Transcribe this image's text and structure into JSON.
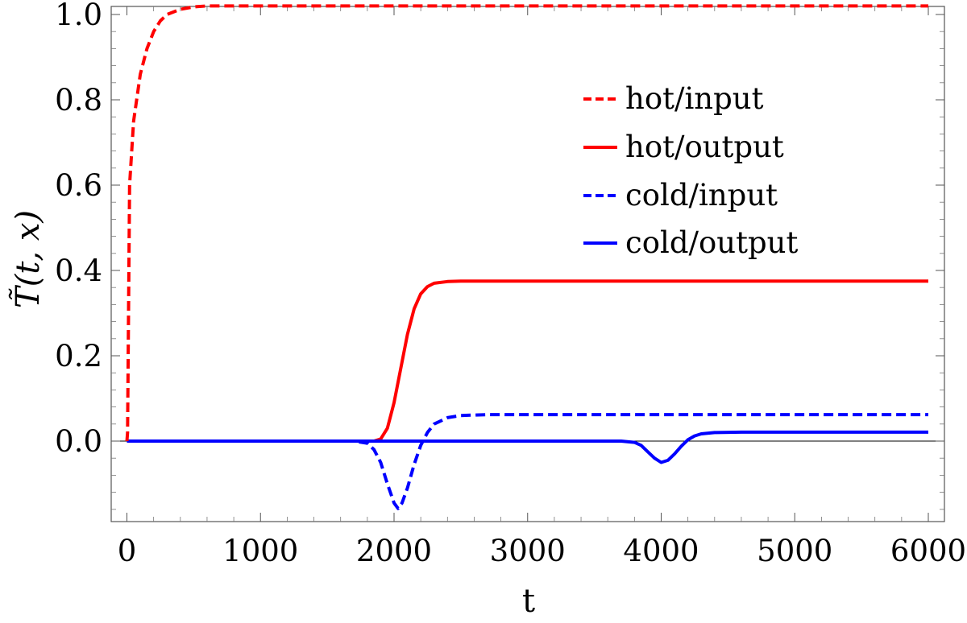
{
  "chart_data": {
    "type": "line",
    "title": "",
    "xlabel": "t",
    "ylabel": "T̃(t, x)",
    "xlim": [
      0,
      6000
    ],
    "ylim": [
      -0.16,
      1.02
    ],
    "x_ticks": [
      0,
      1000,
      2000,
      3000,
      4000,
      5000,
      6000
    ],
    "x_tick_labels": [
      "0",
      "1000",
      "2000",
      "3000",
      "4000",
      "5000",
      "6000"
    ],
    "y_ticks": [
      0.0,
      0.2,
      0.4,
      0.6,
      0.8,
      1.0
    ],
    "y_tick_labels": [
      "0.0",
      "0.2",
      "0.4",
      "0.6",
      "0.8",
      "1.0"
    ],
    "grid": false,
    "legend_position": "upper-right",
    "series": [
      {
        "name": "hot/input",
        "color": "#ff0000",
        "style": "dashed",
        "x": [
          0,
          5,
          20,
          50,
          100,
          150,
          200,
          250,
          300,
          400,
          500,
          600,
          800,
          1000,
          2000,
          3000,
          4000,
          5000,
          6000
        ],
        "y": [
          0.0,
          0.02,
          0.6,
          0.75,
          0.86,
          0.92,
          0.96,
          0.985,
          1.0,
          1.012,
          1.018,
          1.02,
          1.02,
          1.02,
          1.02,
          1.02,
          1.02,
          1.02,
          1.02
        ]
      },
      {
        "name": "hot/output",
        "color": "#ff0000",
        "style": "solid",
        "x": [
          0,
          1000,
          1850,
          1900,
          1950,
          2000,
          2050,
          2100,
          2150,
          2200,
          2250,
          2300,
          2400,
          2500,
          2600,
          3000,
          4000,
          5000,
          6000
        ],
        "y": [
          0.0,
          0.0,
          0.0,
          0.005,
          0.03,
          0.09,
          0.17,
          0.25,
          0.31,
          0.345,
          0.362,
          0.37,
          0.374,
          0.375,
          0.375,
          0.375,
          0.375,
          0.375,
          0.375
        ]
      },
      {
        "name": "cold/input",
        "color": "#0000ff",
        "style": "dashed",
        "x": [
          0,
          1000,
          1700,
          1800,
          1850,
          1900,
          1950,
          2000,
          2030,
          2060,
          2100,
          2150,
          2200,
          2250,
          2300,
          2400,
          2500,
          2700,
          3000,
          4000,
          5000,
          6000
        ],
        "y": [
          0.0,
          0.0,
          0.0,
          -0.005,
          -0.02,
          -0.05,
          -0.1,
          -0.145,
          -0.158,
          -0.145,
          -0.11,
          -0.055,
          -0.01,
          0.02,
          0.04,
          0.055,
          0.06,
          0.062,
          0.062,
          0.062,
          0.062,
          0.062
        ]
      },
      {
        "name": "cold/output",
        "color": "#0000ff",
        "style": "solid",
        "x": [
          0,
          1000,
          2000,
          3000,
          3700,
          3800,
          3850,
          3900,
          3950,
          4000,
          4050,
          4100,
          4150,
          4200,
          4250,
          4300,
          4400,
          4600,
          5000,
          6000
        ],
        "y": [
          0.0,
          0.0,
          0.0,
          0.0,
          0.0,
          -0.003,
          -0.01,
          -0.025,
          -0.04,
          -0.05,
          -0.045,
          -0.03,
          -0.012,
          0.003,
          0.012,
          0.017,
          0.02,
          0.021,
          0.021,
          0.021
        ]
      }
    ]
  }
}
